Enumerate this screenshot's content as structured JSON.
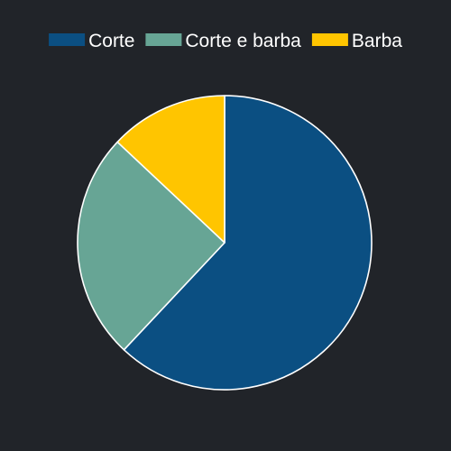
{
  "background_color": "#212429",
  "chart_data": {
    "type": "pie",
    "categories": [
      "Corte",
      "Corte e barba",
      "Barba"
    ],
    "values": [
      62,
      25,
      13
    ],
    "colors": [
      "#0b4f82",
      "#67a595",
      "#ffc500"
    ],
    "legend_position": "top",
    "start_angle": "12 o'clock",
    "direction": "clockwise"
  }
}
